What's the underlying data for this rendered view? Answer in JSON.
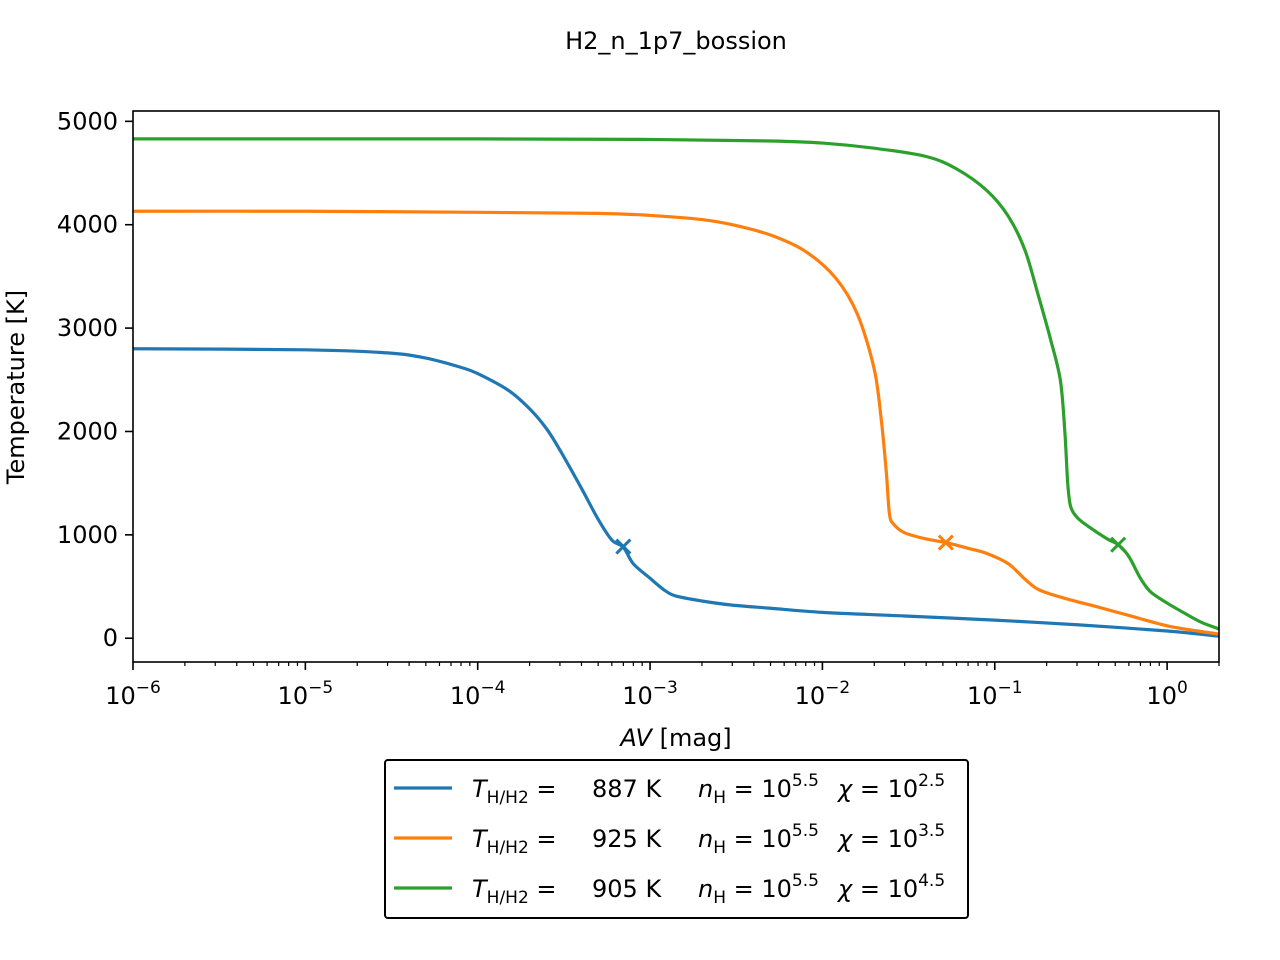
{
  "chart_data": {
    "type": "line",
    "title": "H2_n_1p7_bossion",
    "xlabel": {
      "italic": "AV",
      "rest": " [mag]"
    },
    "ylabel": "Temperature [K]",
    "xscale": "log",
    "xlim": [
      1e-06,
      2.0
    ],
    "ylim": [
      -230,
      5100
    ],
    "grid": false,
    "legend_position": "below plot, centered",
    "x_ticks": [
      {
        "value": 1e-06,
        "base": "10",
        "exp": "−6"
      },
      {
        "value": 1e-05,
        "base": "10",
        "exp": "−5"
      },
      {
        "value": 0.0001,
        "base": "10",
        "exp": "−4"
      },
      {
        "value": 0.001,
        "base": "10",
        "exp": "−3"
      },
      {
        "value": 0.01,
        "base": "10",
        "exp": "−2"
      },
      {
        "value": 0.1,
        "base": "10",
        "exp": "−1"
      },
      {
        "value": 1,
        "base": "10",
        "exp": "0"
      }
    ],
    "y_ticks": [
      {
        "value": 0,
        "label": "0"
      },
      {
        "value": 1000,
        "label": "1000"
      },
      {
        "value": 2000,
        "label": "2000"
      },
      {
        "value": 3000,
        "label": "3000"
      },
      {
        "value": 4000,
        "label": "4000"
      },
      {
        "value": 5000,
        "label": "5000"
      }
    ],
    "series": [
      {
        "color": "#1f77b4",
        "legend": {
          "t_value": "887",
          "t_unit": "K",
          "n_exp": "5.5",
          "chi_exp": "2.5"
        },
        "marker": {
          "x": 0.0007,
          "y": 887
        },
        "points": [
          [
            1e-06,
            2800
          ],
          [
            1e-05,
            2790
          ],
          [
            3e-05,
            2760
          ],
          [
            5e-05,
            2710
          ],
          [
            8e-05,
            2620
          ],
          [
            0.0001,
            2560
          ],
          [
            0.00015,
            2400
          ],
          [
            0.0002,
            2220
          ],
          [
            0.00025,
            2030
          ],
          [
            0.0003,
            1820
          ],
          [
            0.0004,
            1450
          ],
          [
            0.0005,
            1150
          ],
          [
            0.0006,
            950
          ],
          [
            0.0007,
            880
          ],
          [
            0.0008,
            720
          ],
          [
            0.001,
            580
          ],
          [
            0.0012,
            470
          ],
          [
            0.0014,
            410
          ],
          [
            0.002,
            360
          ],
          [
            0.003,
            320
          ],
          [
            0.005,
            290
          ],
          [
            0.01,
            250
          ],
          [
            0.03,
            215
          ],
          [
            0.1,
            175
          ],
          [
            0.3,
            130
          ],
          [
            1.0,
            70
          ],
          [
            2.0,
            20
          ]
        ]
      },
      {
        "color": "#ff7f0e",
        "legend": {
          "t_value": "925",
          "t_unit": "K",
          "n_exp": "5.5",
          "chi_exp": "3.5"
        },
        "marker": {
          "x": 0.052,
          "y": 925
        },
        "points": [
          [
            1e-06,
            4130
          ],
          [
            1e-05,
            4130
          ],
          [
            0.0001,
            4120
          ],
          [
            0.0005,
            4110
          ],
          [
            0.001,
            4090
          ],
          [
            0.002,
            4050
          ],
          [
            0.003,
            4000
          ],
          [
            0.005,
            3900
          ],
          [
            0.008,
            3740
          ],
          [
            0.012,
            3480
          ],
          [
            0.016,
            3130
          ],
          [
            0.02,
            2600
          ],
          [
            0.022,
            2100
          ],
          [
            0.0235,
            1600
          ],
          [
            0.0245,
            1200
          ],
          [
            0.026,
            1100
          ],
          [
            0.03,
            1020
          ],
          [
            0.04,
            960
          ],
          [
            0.052,
            925
          ],
          [
            0.07,
            870
          ],
          [
            0.09,
            820
          ],
          [
            0.12,
            720
          ],
          [
            0.15,
            570
          ],
          [
            0.18,
            470
          ],
          [
            0.25,
            390
          ],
          [
            0.4,
            300
          ],
          [
            0.6,
            220
          ],
          [
            1.0,
            120
          ],
          [
            1.5,
            70
          ],
          [
            2.0,
            40
          ]
        ]
      },
      {
        "color": "#2ca02c",
        "legend": {
          "t_value": "905",
          "t_unit": "K",
          "n_exp": "5.5",
          "chi_exp": "4.5"
        },
        "marker": {
          "x": 0.52,
          "y": 905
        },
        "points": [
          [
            1e-06,
            4830
          ],
          [
            0.0001,
            4830
          ],
          [
            0.001,
            4825
          ],
          [
            0.005,
            4810
          ],
          [
            0.01,
            4790
          ],
          [
            0.02,
            4740
          ],
          [
            0.04,
            4660
          ],
          [
            0.06,
            4540
          ],
          [
            0.09,
            4330
          ],
          [
            0.12,
            4080
          ],
          [
            0.15,
            3750
          ],
          [
            0.18,
            3300
          ],
          [
            0.21,
            2900
          ],
          [
            0.24,
            2500
          ],
          [
            0.255,
            2000
          ],
          [
            0.265,
            1500
          ],
          [
            0.275,
            1280
          ],
          [
            0.3,
            1170
          ],
          [
            0.35,
            1080
          ],
          [
            0.45,
            960
          ],
          [
            0.52,
            905
          ],
          [
            0.6,
            790
          ],
          [
            0.7,
            580
          ],
          [
            0.8,
            450
          ],
          [
            1.0,
            340
          ],
          [
            1.3,
            230
          ],
          [
            1.6,
            150
          ],
          [
            2.0,
            90
          ]
        ]
      }
    ]
  }
}
